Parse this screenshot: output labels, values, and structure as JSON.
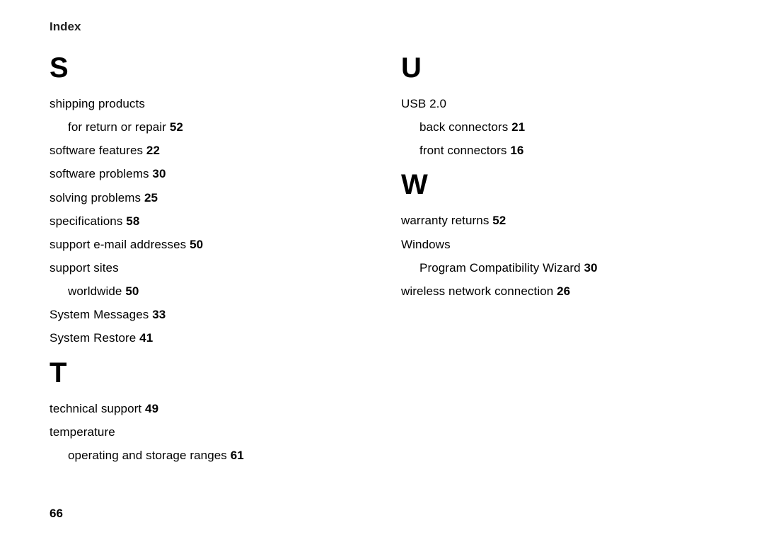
{
  "header": "Index",
  "page_number": "66",
  "col1": {
    "section_s": {
      "letter": "S",
      "e0_text": "shipping products",
      "e0_sub0_text": "for return or repair ",
      "e0_sub0_page": "52",
      "e1_text": "software features ",
      "e1_page": "22",
      "e2_text": "software problems ",
      "e2_page": "30",
      "e3_text": "solving problems ",
      "e3_page": "25",
      "e4_text": "specifications ",
      "e4_page": "58",
      "e5_text": "support e-mail addresses ",
      "e5_page": "50",
      "e6_text": "support sites",
      "e6_sub0_text": "worldwide ",
      "e6_sub0_page": "50",
      "e7_text": "System Messages ",
      "e7_page": "33",
      "e8_text": "System Restore ",
      "e8_page": "41"
    },
    "section_t": {
      "letter": "T",
      "e0_text": "technical support ",
      "e0_page": "49",
      "e1_text": "temperature",
      "e1_sub0_text": "operating and storage ranges ",
      "e1_sub0_page": "61"
    }
  },
  "col2": {
    "section_u": {
      "letter": "U",
      "e0_text": "USB 2.0",
      "e0_sub0_text": "back connectors ",
      "e0_sub0_page": "21",
      "e0_sub1_text": "front connectors ",
      "e0_sub1_page": "16"
    },
    "section_w": {
      "letter": "W",
      "e0_text": "warranty returns ",
      "e0_page": "52",
      "e1_text": "Windows",
      "e1_sub0_text": "Program Compatibility Wizard ",
      "e1_sub0_page": "30",
      "e2_text": "wireless network connection ",
      "e2_page": "26"
    }
  }
}
